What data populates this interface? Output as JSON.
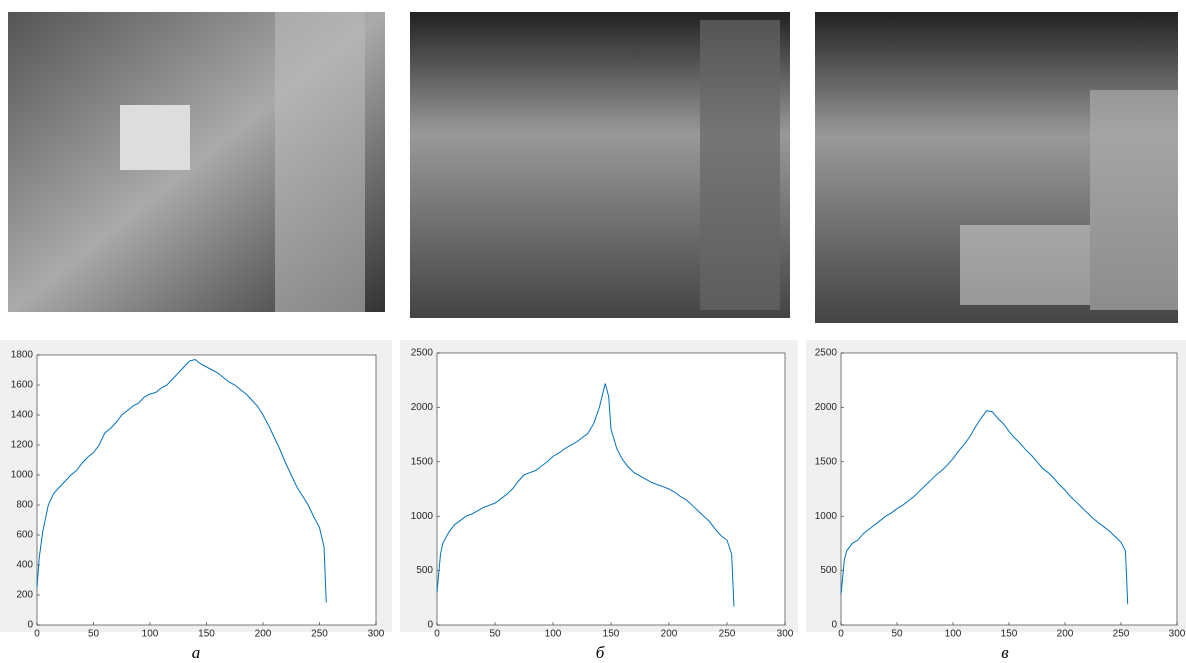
{
  "chart_data": [
    {
      "type": "line",
      "caption": "а",
      "color": "#0072bd",
      "grid": false,
      "xlim": [
        0,
        300
      ],
      "xticks": [
        0,
        50,
        100,
        150,
        200,
        250,
        300
      ],
      "ylim": [
        0,
        1800
      ],
      "yticks": [
        0,
        200,
        400,
        600,
        800,
        1000,
        1200,
        1400,
        1600,
        1800
      ],
      "x": [
        0,
        2,
        5,
        10,
        15,
        20,
        25,
        30,
        35,
        40,
        45,
        50,
        55,
        60,
        65,
        70,
        75,
        80,
        85,
        90,
        95,
        100,
        105,
        110,
        115,
        120,
        125,
        130,
        135,
        140,
        145,
        150,
        155,
        160,
        165,
        170,
        175,
        180,
        185,
        190,
        195,
        200,
        205,
        210,
        215,
        220,
        225,
        230,
        235,
        240,
        245,
        250,
        254,
        256
      ],
      "values": [
        250,
        450,
        620,
        800,
        880,
        920,
        960,
        1000,
        1030,
        1080,
        1120,
        1150,
        1200,
        1280,
        1310,
        1350,
        1400,
        1430,
        1460,
        1480,
        1520,
        1540,
        1550,
        1580,
        1600,
        1640,
        1680,
        1720,
        1760,
        1770,
        1740,
        1720,
        1700,
        1680,
        1650,
        1620,
        1600,
        1570,
        1540,
        1500,
        1460,
        1400,
        1330,
        1250,
        1170,
        1080,
        1000,
        920,
        860,
        800,
        720,
        650,
        520,
        150
      ]
    },
    {
      "type": "line",
      "caption": "б",
      "color": "#0072bd",
      "grid": false,
      "xlim": [
        0,
        300
      ],
      "xticks": [
        0,
        50,
        100,
        150,
        200,
        250,
        300
      ],
      "ylim": [
        0,
        2500
      ],
      "yticks": [
        0,
        500,
        1000,
        1500,
        2000,
        2500
      ],
      "x": [
        0,
        3,
        5,
        10,
        15,
        20,
        25,
        30,
        35,
        40,
        45,
        50,
        55,
        60,
        65,
        70,
        75,
        80,
        85,
        90,
        95,
        100,
        105,
        110,
        115,
        120,
        125,
        130,
        135,
        140,
        145,
        148,
        150,
        155,
        160,
        165,
        170,
        175,
        180,
        185,
        190,
        195,
        200,
        205,
        210,
        215,
        220,
        225,
        230,
        235,
        240,
        245,
        250,
        254,
        256
      ],
      "values": [
        300,
        650,
        750,
        850,
        920,
        960,
        1000,
        1020,
        1050,
        1080,
        1100,
        1120,
        1160,
        1200,
        1250,
        1320,
        1380,
        1400,
        1420,
        1460,
        1500,
        1550,
        1580,
        1620,
        1650,
        1680,
        1720,
        1760,
        1850,
        2000,
        2220,
        2100,
        1800,
        1620,
        1520,
        1450,
        1400,
        1370,
        1340,
        1310,
        1290,
        1270,
        1250,
        1220,
        1180,
        1150,
        1100,
        1050,
        1000,
        950,
        880,
        820,
        780,
        650,
        170
      ]
    },
    {
      "type": "line",
      "caption": "в",
      "color": "#0072bd",
      "grid": false,
      "xlim": [
        0,
        300
      ],
      "xticks": [
        0,
        50,
        100,
        150,
        200,
        250,
        300
      ],
      "ylim": [
        0,
        2500
      ],
      "yticks": [
        0,
        500,
        1000,
        1500,
        2000,
        2500
      ],
      "x": [
        0,
        3,
        5,
        10,
        15,
        20,
        25,
        30,
        35,
        40,
        45,
        50,
        55,
        60,
        65,
        70,
        75,
        80,
        85,
        90,
        95,
        100,
        105,
        110,
        115,
        120,
        125,
        130,
        135,
        140,
        145,
        150,
        155,
        160,
        165,
        170,
        175,
        180,
        185,
        190,
        195,
        200,
        205,
        210,
        215,
        220,
        225,
        230,
        235,
        240,
        245,
        250,
        254,
        256
      ],
      "values": [
        280,
        600,
        680,
        750,
        780,
        840,
        880,
        920,
        960,
        1000,
        1030,
        1070,
        1100,
        1140,
        1180,
        1230,
        1280,
        1330,
        1380,
        1420,
        1470,
        1530,
        1600,
        1660,
        1730,
        1820,
        1900,
        1970,
        1960,
        1900,
        1850,
        1780,
        1720,
        1670,
        1610,
        1560,
        1500,
        1440,
        1400,
        1350,
        1290,
        1240,
        1180,
        1130,
        1080,
        1030,
        980,
        940,
        900,
        860,
        810,
        760,
        680,
        190
      ]
    }
  ]
}
